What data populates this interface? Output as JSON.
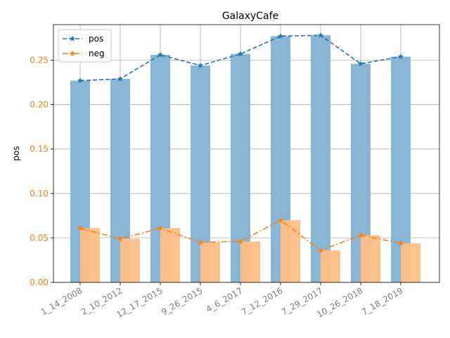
{
  "chart_data": {
    "type": "bar",
    "title": "GalaxyCafe",
    "ylabel": "pos",
    "xlabel": "",
    "categories": [
      "1_14_2008",
      "2_10_2012",
      "12_17_2015",
      "9_26_2015",
      "4_6_2017",
      "7_12_2016",
      "7_29_2017",
      "10_26_2018",
      "7_18_2019"
    ],
    "series": [
      {
        "name": "pos",
        "values": [
          0.227,
          0.229,
          0.256,
          0.244,
          0.257,
          0.277,
          0.278,
          0.246,
          0.254
        ],
        "bar_color": "#8ab6d6",
        "line_color": "#1f77b4",
        "line_style": "dashed"
      },
      {
        "name": "neg",
        "values": [
          0.061,
          0.049,
          0.061,
          0.045,
          0.046,
          0.07,
          0.036,
          0.053,
          0.044
        ],
        "bar_color": "#ffbf86",
        "line_color": "#ff7f0e",
        "line_style": "dashdot"
      }
    ],
    "ylim": [
      0,
      0.29
    ],
    "yticks": [
      "0.00",
      "0.05",
      "0.10",
      "0.15",
      "0.20",
      "0.25"
    ],
    "ytick_values": [
      0,
      0.05,
      0.1,
      0.15,
      0.2,
      0.25
    ],
    "ytick_color": "#ff7f0e",
    "grid": true,
    "legend": "top-left",
    "marker": "star"
  }
}
